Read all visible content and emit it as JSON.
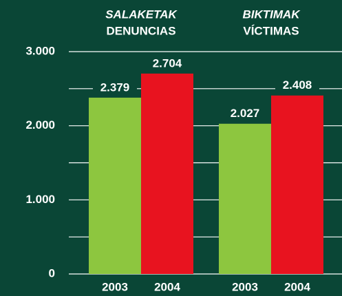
{
  "chart_data": {
    "type": "bar",
    "categories": [
      [
        "SALAKETAK",
        "DENUNCIAS"
      ],
      [
        "BIKTIMAK",
        "VÍCTIMAS"
      ]
    ],
    "series": [
      {
        "name": "2003",
        "color": "#8dc63f",
        "values": [
          2379,
          2027
        ],
        "value_labels": [
          "2.379",
          "2.027"
        ]
      },
      {
        "name": "2004",
        "color": "#e8131f",
        "values": [
          2704,
          2408
        ],
        "value_labels": [
          "2.704",
          "2.408"
        ]
      }
    ],
    "ylim": [
      0,
      3000
    ],
    "yticks": [
      0,
      {
        "value": 1000,
        "label": "1.000"
      },
      {
        "value": 2000,
        "label": "2.000"
      },
      {
        "value": 3000,
        "label": "3.000"
      }
    ],
    "minor_yticks": [
      500,
      1500,
      2500
    ],
    "grid": true
  }
}
